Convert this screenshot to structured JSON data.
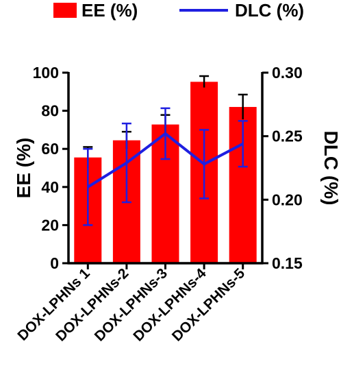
{
  "chart_data": {
    "type": "bar",
    "categories": [
      "DOX-LPHNs 1",
      "DOX-LPHNs-2",
      "DOX-LPHNs-3",
      "DOX-LPHNs-4",
      "DOX-LPHNs-5"
    ],
    "series": [
      {
        "name": "EE (%)",
        "type": "bar",
        "axis": "left",
        "values": [
          55.5,
          64.5,
          72.8,
          95.2,
          82.0
        ],
        "error": [
          5.5,
          4.5,
          5.0,
          3.0,
          6.5
        ],
        "color": "#ff0000"
      },
      {
        "name": "DLC (%)",
        "type": "line",
        "axis": "right",
        "values": [
          0.21,
          0.229,
          0.252,
          0.228,
          0.244
        ],
        "error": [
          0.03,
          0.031,
          0.02,
          0.027,
          0.018
        ],
        "color": "#1f1fe0"
      }
    ],
    "y_left": {
      "label": "EE (%)",
      "ylim": [
        0,
        100
      ],
      "ticks": [
        "0",
        "20",
        "40",
        "60",
        "80",
        "100"
      ]
    },
    "y_right": {
      "label": "DLC (%)",
      "ylim": [
        0.15,
        0.3
      ],
      "ticks": [
        "0.15",
        "0.20",
        "0.25",
        "0.30"
      ]
    },
    "legend": [
      {
        "label": "EE (%)",
        "marker": "rect",
        "color": "#ff0000"
      },
      {
        "label": "DLC (%)",
        "marker": "line",
        "color": "#1f1fe0"
      }
    ],
    "legend_position": "top",
    "grid": false
  }
}
